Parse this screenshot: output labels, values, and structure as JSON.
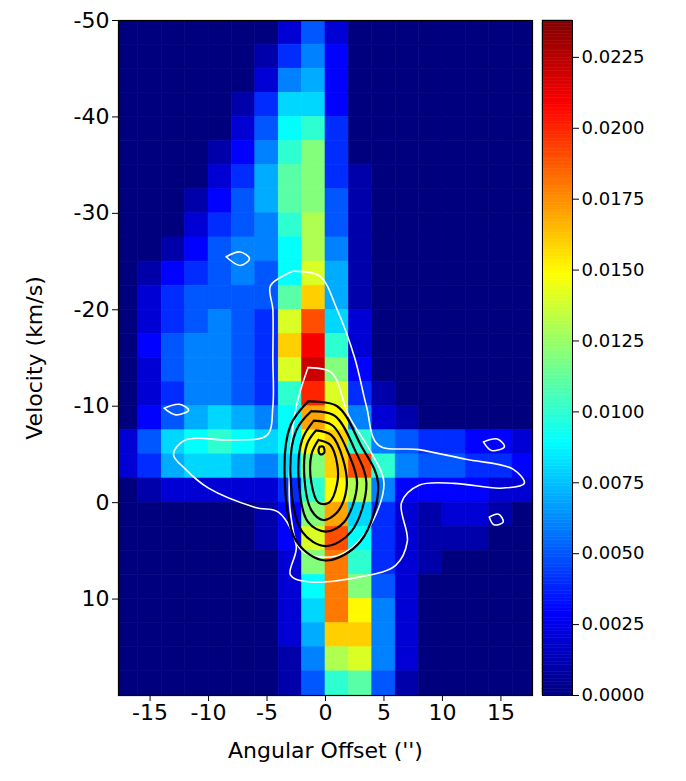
{
  "chart_data": {
    "type": "heatmap",
    "x_label": "Angular Offset ('')",
    "y_label": "Velocity (km/s)",
    "xlim": [
      -17.7,
      17.7
    ],
    "ylim": [
      -50,
      20
    ],
    "xticks": [
      -15,
      -10,
      -5,
      0,
      5,
      10,
      15
    ],
    "yticks": [
      -50,
      -40,
      -30,
      -20,
      -10,
      0,
      10
    ],
    "grid": false,
    "x_bins": [
      -18,
      -16,
      -14,
      -12,
      -10,
      -8,
      -6,
      -4,
      -2,
      0,
      2,
      4,
      6,
      8,
      10,
      12,
      14,
      16,
      18
    ],
    "y_bins": [
      -50,
      -47.5,
      -45,
      -42.5,
      -40,
      -37.5,
      -35,
      -32.5,
      -30,
      -27.5,
      -25,
      -22.5,
      -20,
      -17.5,
      -15,
      -12.5,
      -10,
      -7.5,
      -5,
      -2.5,
      0,
      2.5,
      5,
      7.5,
      10,
      12.5,
      15,
      17.5,
      20
    ],
    "cells": [
      [
        0,
        0,
        0,
        0,
        0,
        0,
        0,
        0.002,
        0.005,
        0.002,
        0,
        0,
        0,
        0,
        0,
        0,
        0,
        0
      ],
      [
        0,
        0,
        0,
        0,
        0,
        0,
        0.001,
        0.004,
        0.006,
        0.003,
        0,
        0,
        0,
        0,
        0,
        0,
        0,
        0
      ],
      [
        0,
        0,
        0,
        0,
        0,
        0,
        0.002,
        0.006,
        0.007,
        0.003,
        0,
        0,
        0,
        0,
        0,
        0,
        0,
        0
      ],
      [
        0,
        0,
        0,
        0,
        0,
        0.001,
        0.004,
        0.008,
        0.008,
        0.003,
        0,
        0,
        0,
        0,
        0,
        0,
        0,
        0
      ],
      [
        0,
        0,
        0,
        0,
        0,
        0.002,
        0.005,
        0.009,
        0.01,
        0.004,
        0,
        0,
        0,
        0,
        0,
        0,
        0,
        0
      ],
      [
        0,
        0,
        0,
        0,
        0.001,
        0.003,
        0.006,
        0.01,
        0.012,
        0.004,
        0,
        0,
        0,
        0,
        0,
        0,
        0,
        0
      ],
      [
        0,
        0,
        0,
        0,
        0.002,
        0.004,
        0.007,
        0.011,
        0.012,
        0.004,
        0.001,
        0,
        0,
        0,
        0,
        0,
        0,
        0
      ],
      [
        0,
        0,
        0,
        0.001,
        0.003,
        0.005,
        0.007,
        0.011,
        0.012,
        0.005,
        0.001,
        0,
        0,
        0,
        0,
        0,
        0,
        0
      ],
      [
        0,
        0,
        0,
        0.002,
        0.004,
        0.005,
        0.006,
        0.01,
        0.013,
        0.005,
        0.001,
        0,
        0,
        0,
        0,
        0,
        0,
        0
      ],
      [
        0,
        0,
        0.001,
        0.003,
        0.005,
        0.006,
        0.006,
        0.009,
        0.013,
        0.006,
        0.001,
        0,
        0,
        0,
        0,
        0,
        0,
        0
      ],
      [
        0,
        0.001,
        0.003,
        0.004,
        0.005,
        0.006,
        0.005,
        0.009,
        0.014,
        0.007,
        0.001,
        0,
        0,
        0,
        0,
        0,
        0,
        0
      ],
      [
        0,
        0.002,
        0.004,
        0.005,
        0.005,
        0.005,
        0.005,
        0.011,
        0.016,
        0.007,
        0.001,
        0,
        0,
        0,
        0,
        0,
        0,
        0
      ],
      [
        0,
        0.002,
        0.004,
        0.005,
        0.006,
        0.005,
        0.004,
        0.014,
        0.019,
        0.008,
        0.002,
        0,
        0,
        0,
        0,
        0,
        0,
        0
      ],
      [
        0,
        0.003,
        0.005,
        0.006,
        0.006,
        0.005,
        0.004,
        0.016,
        0.021,
        0.01,
        0.002,
        0,
        0,
        0,
        0,
        0,
        0,
        0
      ],
      [
        0,
        0.002,
        0.005,
        0.006,
        0.006,
        0.005,
        0.004,
        0.014,
        0.022,
        0.012,
        0.003,
        0,
        0,
        0,
        0,
        0,
        0,
        0
      ],
      [
        0,
        0.002,
        0.004,
        0.006,
        0.006,
        0.005,
        0.004,
        0.01,
        0.02,
        0.014,
        0.004,
        0.001,
        0,
        0,
        0,
        0,
        0,
        0
      ],
      [
        0,
        0.003,
        0.005,
        0.007,
        0.008,
        0.007,
        0.006,
        0.009,
        0.017,
        0.015,
        0.006,
        0.002,
        0.001,
        0,
        0,
        0,
        0,
        0
      ],
      [
        0.002,
        0.005,
        0.008,
        0.009,
        0.01,
        0.009,
        0.008,
        0.009,
        0.015,
        0.016,
        0.01,
        0.006,
        0.005,
        0.004,
        0.004,
        0.003,
        0.003,
        0.002
      ],
      [
        0.002,
        0.004,
        0.007,
        0.008,
        0.008,
        0.007,
        0.006,
        0.008,
        0.012,
        0.016,
        0.019,
        0.01,
        0.006,
        0.005,
        0.005,
        0.004,
        0.004,
        0.003
      ],
      [
        0,
        0.001,
        0.002,
        0.002,
        0.002,
        0.002,
        0.002,
        0.004,
        0.01,
        0.015,
        0.013,
        0.006,
        0.003,
        0.003,
        0.003,
        0.003,
        0.002,
        0.002
      ],
      [
        0,
        0,
        0,
        0,
        0,
        0,
        0.001,
        0.003,
        0.012,
        0.017,
        0.008,
        0.004,
        0.002,
        0.001,
        0.002,
        0.002,
        0.001,
        0
      ],
      [
        0,
        0,
        0,
        0,
        0,
        0,
        0.001,
        0.003,
        0.014,
        0.019,
        0.009,
        0.004,
        0.002,
        0.001,
        0.001,
        0.001,
        0,
        0
      ],
      [
        0,
        0,
        0,
        0,
        0,
        0,
        0,
        0.002,
        0.012,
        0.018,
        0.01,
        0.004,
        0.002,
        0.001,
        0,
        0,
        0,
        0
      ],
      [
        0,
        0,
        0,
        0,
        0,
        0,
        0,
        0.002,
        0.009,
        0.018,
        0.012,
        0.005,
        0.002,
        0,
        0,
        0,
        0,
        0
      ],
      [
        0,
        0,
        0,
        0,
        0,
        0,
        0,
        0.002,
        0.008,
        0.018,
        0.015,
        0.006,
        0.002,
        0,
        0,
        0,
        0,
        0
      ],
      [
        0,
        0,
        0,
        0,
        0,
        0,
        0,
        0.002,
        0.007,
        0.016,
        0.016,
        0.006,
        0.002,
        0,
        0,
        0,
        0,
        0
      ],
      [
        0,
        0,
        0,
        0,
        0,
        0,
        0,
        0.001,
        0.006,
        0.013,
        0.014,
        0.006,
        0.002,
        0,
        0,
        0,
        0,
        0
      ],
      [
        0,
        0,
        0,
        0,
        0,
        0,
        0,
        0.001,
        0.005,
        0.01,
        0.011,
        0.005,
        0.001,
        0,
        0,
        0,
        0,
        0
      ]
    ],
    "colorbar": {
      "lim": [
        0,
        0.0238
      ],
      "ticks": [
        {
          "value": 0,
          "label": "0.0000"
        },
        {
          "value": 0.0025,
          "label": "0.0025"
        },
        {
          "value": 0.005,
          "label": "0.0050"
        },
        {
          "value": 0.0075,
          "label": "0.0075"
        },
        {
          "value": 0.01,
          "label": "0.0100"
        },
        {
          "value": 0.0125,
          "label": "0.0125"
        },
        {
          "value": 0.015,
          "label": "0.0150"
        },
        {
          "value": 0.0175,
          "label": "0.0175"
        },
        {
          "value": 0.02,
          "label": "0.0200"
        },
        {
          "value": 0.0225,
          "label": "0.0225"
        }
      ]
    },
    "contours": [
      {
        "color": "white",
        "paths": [
          [
            [
              -2.8,
              -24
            ],
            [
              -0.5,
              -23.5
            ],
            [
              1.0,
              -20
            ],
            [
              2.5,
              -15
            ],
            [
              3.5,
              -10
            ],
            [
              4.5,
              -6
            ],
            [
              8,
              -5.5
            ],
            [
              12,
              -4.5
            ],
            [
              16,
              -3.5
            ],
            [
              17,
              -2
            ],
            [
              15,
              -1.5
            ],
            [
              11,
              -2
            ],
            [
              8,
              -1.8
            ],
            [
              6.5,
              0
            ],
            [
              7,
              4
            ],
            [
              6,
              6.5
            ],
            [
              3,
              7.7
            ],
            [
              -1.5,
              8.2
            ],
            [
              -3,
              7.5
            ],
            [
              -2.5,
              4.5
            ],
            [
              -4,
              1
            ],
            [
              -6,
              0.5
            ],
            [
              -10,
              -1.5
            ],
            [
              -12,
              -3.5
            ],
            [
              -13,
              -5
            ],
            [
              -12,
              -6.5
            ],
            [
              -8,
              -6.5
            ],
            [
              -5,
              -7
            ],
            [
              -4.5,
              -10
            ],
            [
              -4.5,
              -15
            ],
            [
              -4.5,
              -20
            ],
            [
              -4.7,
              -22.5
            ],
            [
              -2.8,
              -24
            ]
          ],
          [
            [
              -1.5,
              -14
            ],
            [
              0.5,
              -13.5
            ],
            [
              2,
              -9
            ],
            [
              4,
              -5
            ],
            [
              5,
              -2
            ],
            [
              3.5,
              3
            ],
            [
              1,
              5.5
            ],
            [
              -2,
              5
            ],
            [
              -3,
              1
            ],
            [
              -3,
              -5
            ],
            [
              -2.5,
              -10
            ],
            [
              -1.5,
              -14
            ]
          ],
          [
            [
              -8.5,
              -25.5
            ],
            [
              -7.3,
              -26
            ],
            [
              -6.5,
              -25.3
            ],
            [
              -7.3,
              -24.6
            ],
            [
              -8.5,
              -25.5
            ]
          ],
          [
            [
              -13.8,
              -9.8
            ],
            [
              -12.5,
              -10.2
            ],
            [
              -11.7,
              -9.6
            ],
            [
              -12.8,
              -9.1
            ],
            [
              -13.8,
              -9.8
            ]
          ],
          [
            [
              13.5,
              -6.3
            ],
            [
              14.7,
              -6.6
            ],
            [
              15.3,
              -5.8
            ],
            [
              14.2,
              -5.4
            ],
            [
              13.5,
              -6.3
            ]
          ],
          [
            [
              14,
              1.5
            ],
            [
              14.8,
              1.2
            ],
            [
              15.2,
              2
            ],
            [
              14.4,
              2.3
            ],
            [
              14,
              1.5
            ]
          ]
        ]
      },
      {
        "color": "black",
        "paths": [
          [
            [
              -1.5,
              -10.5
            ],
            [
              1,
              -10
            ],
            [
              3,
              -6
            ],
            [
              4.5,
              -2
            ],
            [
              3,
              4
            ],
            [
              0,
              6
            ],
            [
              -2.5,
              4
            ],
            [
              -3.5,
              -3
            ],
            [
              -3,
              -8
            ],
            [
              -1.5,
              -10.5
            ]
          ],
          [
            [
              -1.2,
              -9.5
            ],
            [
              0.8,
              -9
            ],
            [
              2.5,
              -5.5
            ],
            [
              3.5,
              -2
            ],
            [
              2.2,
              3
            ],
            [
              0,
              4.5
            ],
            [
              -2,
              3
            ],
            [
              -3,
              -3
            ],
            [
              -2.5,
              -7.5
            ],
            [
              -1.2,
              -9.5
            ]
          ],
          [
            [
              -1,
              -8.5
            ],
            [
              0.6,
              -8
            ],
            [
              2,
              -5
            ],
            [
              2.7,
              -2
            ],
            [
              1.6,
              2
            ],
            [
              0,
              3
            ],
            [
              -1.5,
              2
            ],
            [
              -2.3,
              -2.5
            ],
            [
              -2,
              -6.5
            ],
            [
              -1,
              -8.5
            ]
          ],
          [
            [
              -0.8,
              -7.5
            ],
            [
              0.5,
              -7
            ],
            [
              1.5,
              -4.5
            ],
            [
              1.8,
              -1.5
            ],
            [
              1,
              1
            ],
            [
              -0.2,
              1.8
            ],
            [
              -1.2,
              0.8
            ],
            [
              -1.8,
              -2.5
            ],
            [
              -1.6,
              -6
            ],
            [
              -0.8,
              -7.5
            ]
          ],
          [
            [
              -0.6,
              -6.5
            ],
            [
              0.4,
              -6
            ],
            [
              1,
              -4
            ],
            [
              1,
              -2
            ],
            [
              0.3,
              0
            ],
            [
              -0.6,
              0
            ],
            [
              -1.2,
              -2
            ],
            [
              -1.2,
              -5
            ],
            [
              -0.6,
              -6.5
            ]
          ],
          [
            [
              -0.5,
              -5.8
            ],
            [
              -0.2,
              -5.8
            ],
            [
              -0.1,
              -5.2
            ],
            [
              -0.4,
              -5
            ],
            [
              -0.6,
              -5.4
            ],
            [
              -0.5,
              -5.8
            ]
          ]
        ]
      }
    ]
  }
}
